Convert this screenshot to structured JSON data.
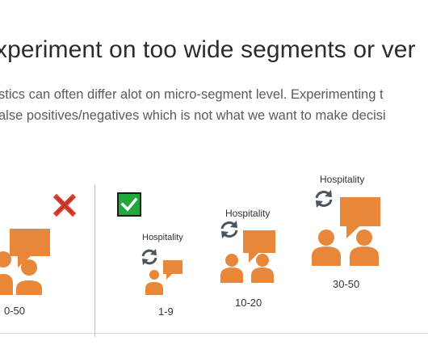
{
  "slide": {
    "title": "xperiment on too wide segments or ver",
    "paragraph": [
      "stics can often differ alot on micro-segment level. Experimenting t",
      "alse positives/negatives which is not what we want to make decisi"
    ]
  },
  "wrong_example": {
    "range_label": "0-50",
    "icon": "cross-mark-icon",
    "icon_color": "#e03c2e"
  },
  "right_examples": {
    "icon": "check-mark-icon",
    "icon_color": "#22a83a",
    "accent_color": "#e8873a",
    "groups": [
      {
        "segment": "Hospitality",
        "range_label": "1-9"
      },
      {
        "segment": "Hospitality",
        "range_label": "10-20"
      },
      {
        "segment": "Hospitality",
        "range_label": "30-50"
      }
    ]
  }
}
